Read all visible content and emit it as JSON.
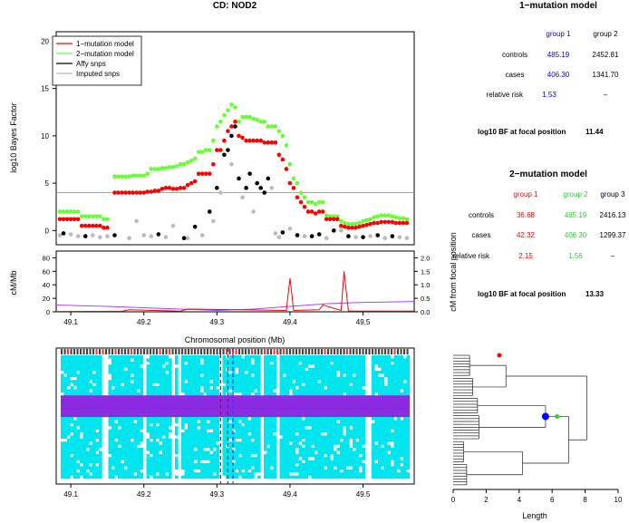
{
  "chart_data": [
    {
      "type": "scatter",
      "title": "CD: NOD2",
      "ylabel": "log10 Bayes Factor",
      "xlim": [
        49.08,
        49.57
      ],
      "ylim": [
        -1.5,
        21
      ],
      "yticks": [
        0,
        5,
        10,
        15,
        20
      ],
      "threshold": 4,
      "legend": {
        "position": "top-left",
        "entries": [
          {
            "label": "1−mutation model",
            "color": "#ff0000"
          },
          {
            "label": "2−mutation model",
            "color": "#66ff33"
          },
          {
            "label": "Affy snps",
            "color": "#000000"
          },
          {
            "label": "Imputed snps",
            "color": "#bbbbbb"
          }
        ]
      },
      "series": [
        {
          "name": "1−mutation model",
          "color": "#ff0000",
          "x": [
            49.085,
            49.09,
            49.095,
            49.1,
            49.105,
            49.11,
            49.115,
            49.12,
            49.125,
            49.13,
            49.135,
            49.14,
            49.145,
            49.15,
            49.16,
            49.165,
            49.17,
            49.175,
            49.18,
            49.185,
            49.19,
            49.195,
            49.2,
            49.205,
            49.21,
            49.215,
            49.22,
            49.225,
            49.23,
            49.235,
            49.24,
            49.245,
            49.25,
            49.255,
            49.26,
            49.265,
            49.27,
            49.275,
            49.28,
            49.285,
            49.29,
            49.295,
            49.3,
            49.305,
            49.31,
            49.315,
            49.32,
            49.325,
            49.33,
            49.335,
            49.34,
            49.345,
            49.35,
            49.355,
            49.36,
            49.365,
            49.37,
            49.375,
            49.38,
            49.385,
            49.39,
            49.395,
            49.4,
            49.405,
            49.41,
            49.415,
            49.42,
            49.425,
            49.43,
            49.435,
            49.44,
            49.445,
            49.45,
            49.455,
            49.46,
            49.465,
            49.47,
            49.475,
            49.48,
            49.485,
            49.49,
            49.495,
            49.5,
            49.505,
            49.51,
            49.515,
            49.52,
            49.525,
            49.53,
            49.535,
            49.54,
            49.545,
            49.55,
            49.555,
            49.56
          ],
          "y": [
            1.2,
            1.2,
            1.2,
            1.2,
            1.2,
            1.2,
            0.5,
            0.5,
            0.5,
            0.5,
            0.5,
            0.5,
            0.3,
            0.3,
            4.0,
            4.0,
            4.0,
            4.0,
            4.0,
            4.0,
            4.0,
            4.0,
            4.0,
            4.1,
            4.1,
            4.2,
            4.2,
            4.4,
            4.5,
            4.5,
            4.4,
            4.4,
            4.5,
            4.5,
            4.8,
            5.0,
            5.2,
            6.0,
            6.0,
            6.0,
            6.0,
            7.0,
            8.5,
            8.5,
            9.5,
            10.5,
            11.0,
            11.5,
            10.0,
            9.8,
            9.5,
            9.5,
            9.5,
            9.5,
            9.5,
            9.3,
            9.3,
            9.3,
            9.3,
            8.0,
            7.5,
            6.5,
            5.0,
            4.5,
            3.5,
            3.0,
            2.5,
            2.0,
            2.0,
            1.8,
            2.0,
            2.0,
            1.2,
            1.2,
            1.2,
            1.2,
            0.5,
            0.4,
            0.3,
            0.3,
            0.3,
            0.4,
            0.5,
            0.6,
            0.7,
            0.8,
            0.8,
            0.9,
            0.9,
            0.9,
            0.9,
            0.8,
            0.8,
            0.8,
            0.8
          ]
        },
        {
          "name": "2−mutation model",
          "color": "#66ff33",
          "x": [
            49.085,
            49.09,
            49.095,
            49.1,
            49.105,
            49.11,
            49.115,
            49.12,
            49.125,
            49.13,
            49.135,
            49.14,
            49.145,
            49.15,
            49.16,
            49.165,
            49.17,
            49.175,
            49.18,
            49.185,
            49.19,
            49.195,
            49.2,
            49.205,
            49.21,
            49.215,
            49.22,
            49.225,
            49.23,
            49.235,
            49.24,
            49.245,
            49.25,
            49.255,
            49.26,
            49.265,
            49.27,
            49.275,
            49.28,
            49.285,
            49.29,
            49.295,
            49.3,
            49.305,
            49.31,
            49.315,
            49.32,
            49.325,
            49.33,
            49.335,
            49.34,
            49.345,
            49.35,
            49.355,
            49.36,
            49.365,
            49.37,
            49.375,
            49.38,
            49.385,
            49.39,
            49.395,
            49.4,
            49.405,
            49.41,
            49.415,
            49.42,
            49.425,
            49.43,
            49.435,
            49.44,
            49.445,
            49.45,
            49.455,
            49.46,
            49.465,
            49.47,
            49.475,
            49.48,
            49.485,
            49.49,
            49.495,
            49.5,
            49.505,
            49.51,
            49.515,
            49.52,
            49.525,
            49.53,
            49.535,
            49.54,
            49.545,
            49.55,
            49.555,
            49.56
          ],
          "y": [
            2.0,
            2.0,
            2.0,
            2.0,
            2.0,
            2.0,
            1.5,
            1.5,
            1.5,
            1.5,
            1.5,
            1.5,
            1.2,
            1.2,
            5.7,
            5.7,
            5.7,
            5.7,
            5.7,
            5.8,
            5.8,
            5.8,
            5.8,
            6.0,
            6.5,
            6.5,
            6.5,
            6.6,
            6.6,
            6.7,
            6.7,
            6.8,
            7.0,
            7.0,
            7.2,
            7.4,
            7.6,
            8.3,
            8.3,
            8.5,
            8.5,
            9.5,
            11.0,
            11.5,
            12.2,
            12.7,
            13.3,
            13.0,
            11.5,
            12.0,
            12.0,
            12.0,
            11.8,
            11.7,
            11.5,
            11.5,
            11.0,
            11.0,
            11.0,
            10.5,
            10.0,
            9.0,
            7.0,
            5.5,
            5.0,
            4.0,
            3.5,
            3.0,
            3.0,
            2.8,
            3.0,
            3.0,
            1.6,
            1.5,
            1.5,
            1.5,
            1.0,
            0.8,
            0.7,
            0.7,
            0.7,
            0.8,
            1.0,
            1.1,
            1.2,
            1.4,
            1.5,
            1.6,
            1.6,
            1.6,
            1.5,
            1.4,
            1.3,
            1.3,
            1.2
          ]
        },
        {
          "name": "Affy snps",
          "color": "#000000",
          "x": [
            49.09,
            49.12,
            49.16,
            49.22,
            49.255,
            49.27,
            49.29,
            49.3,
            49.31,
            49.315,
            49.32,
            49.325,
            49.33,
            49.34,
            49.345,
            49.355,
            49.36,
            49.365,
            49.37,
            49.39,
            49.41,
            49.43,
            49.44,
            49.46,
            49.48,
            49.5,
            49.52,
            49.54
          ],
          "y": [
            -0.3,
            -0.6,
            -0.5,
            -0.4,
            -0.8,
            0.4,
            2.0,
            4.5,
            8.0,
            8.5,
            10.0,
            11.0,
            5.5,
            4.5,
            6.0,
            5.0,
            4.5,
            4.0,
            5.5,
            -0.2,
            -0.5,
            -0.6,
            -0.4,
            0.0,
            -0.6,
            -0.7,
            -0.5,
            -0.6
          ]
        },
        {
          "name": "Imputed snps",
          "color": "#bbbbbb",
          "x": [
            49.085,
            49.1,
            49.11,
            49.13,
            49.14,
            49.15,
            49.18,
            49.19,
            49.2,
            49.21,
            49.23,
            49.24,
            49.26,
            49.28,
            49.295,
            49.305,
            49.32,
            49.335,
            49.35,
            49.375,
            49.38,
            49.385,
            49.4,
            49.42,
            49.45,
            49.47,
            49.49,
            49.51,
            49.53,
            49.55,
            49.56
          ],
          "y": [
            -0.5,
            -0.4,
            -0.6,
            -0.5,
            -0.7,
            -0.6,
            -0.8,
            1.0,
            -0.5,
            -0.6,
            -0.7,
            0.5,
            -0.8,
            -0.5,
            1.0,
            4.0,
            7.0,
            3.5,
            2.0,
            4.5,
            -0.3,
            -0.7,
            0.2,
            -0.6,
            -0.8,
            0.0,
            -0.7,
            -0.6,
            -0.8,
            -0.7,
            -0.8
          ]
        }
      ]
    },
    {
      "type": "line",
      "ylabel_left": "cM/Mb",
      "ylabel_right": "cM from focal position",
      "xlabel": "Chromosomal position (Mb)",
      "xlim": [
        49.08,
        49.57
      ],
      "xticks": [
        49.1,
        49.2,
        49.3,
        49.4,
        49.5
      ],
      "ylim_left": [
        0,
        90
      ],
      "yticks_left": [
        0,
        20,
        40,
        60,
        80
      ],
      "ylim_right": [
        0,
        2.25
      ],
      "yticks_right": [
        0.0,
        0.5,
        1.0,
        1.5,
        2.0
      ],
      "series": [
        {
          "name": "recombination rate",
          "color": "#ff0000",
          "x": [
            49.08,
            49.17,
            49.18,
            49.25,
            49.26,
            49.395,
            49.4,
            49.405,
            49.44,
            49.445,
            49.47,
            49.474,
            49.48,
            49.57
          ],
          "y": [
            0.5,
            0.8,
            3,
            1,
            4,
            2,
            50,
            2,
            3,
            10,
            2,
            60,
            1,
            1
          ]
        },
        {
          "name": "cM from focal position",
          "color": "#aa44ff",
          "x": [
            49.08,
            49.15,
            49.2,
            49.25,
            49.3,
            49.35,
            49.4,
            49.45,
            49.5,
            49.57
          ],
          "y": [
            0.25,
            0.2,
            0.15,
            0.1,
            0.05,
            0.1,
            0.2,
            0.3,
            0.35,
            0.38
          ]
        }
      ]
    },
    {
      "type": "heatmap",
      "xlim": [
        49.08,
        49.57
      ],
      "xticks": [
        49.1,
        49.2,
        49.3,
        49.4,
        49.5
      ],
      "focal_lines": [
        49.305,
        49.315,
        49.322
      ],
      "colors": {
        "major": "#00e5ee",
        "minor": "#ffffff",
        "haplotype": "#8a2be2"
      }
    },
    {
      "type": "line",
      "subtype": "dendrogram",
      "xlabel": "Length",
      "xlim": [
        0,
        10
      ],
      "xticks": [
        0,
        2,
        4,
        6,
        8,
        10
      ],
      "markers": [
        {
          "x": 2.8,
          "color": "#ff0000"
        },
        {
          "x": 5.6,
          "color": "#0000ff"
        },
        {
          "x": 6.3,
          "color": "#33cc33"
        }
      ]
    }
  ],
  "tables": {
    "one_mutation": {
      "title": "1−mutation model",
      "headers": [
        "group 1",
        "group 2"
      ],
      "header_colors": [
        "#0000ff",
        "#000000"
      ],
      "rows": [
        {
          "label": "controls",
          "values": [
            "485.19",
            "2452.81"
          ],
          "colors": [
            "#0000ff",
            "#000000"
          ]
        },
        {
          "label": "cases",
          "values": [
            "406.30",
            "1341.70"
          ],
          "colors": [
            "#0000ff",
            "#000000"
          ]
        },
        {
          "label": "relative risk",
          "values": [
            "1.53",
            "–"
          ],
          "colors": [
            "#0000ff",
            "#000000"
          ]
        }
      ],
      "bf_label": "log10 BF at focal position",
      "bf_value": "11.44"
    },
    "two_mutation": {
      "title": "2−mutation model",
      "headers": [
        "group 1",
        "group 2",
        "group 3"
      ],
      "header_colors": [
        "#ff0000",
        "#33cc33",
        "#000000"
      ],
      "rows": [
        {
          "label": "controls",
          "values": [
            "36.68",
            "485.19",
            "2416.13"
          ],
          "colors": [
            "#ff0000",
            "#33cc33",
            "#000000"
          ]
        },
        {
          "label": "cases",
          "values": [
            "42.32",
            "406.30",
            "1299.37"
          ],
          "colors": [
            "#ff0000",
            "#33cc33",
            "#000000"
          ]
        },
        {
          "label": "relative risk",
          "values": [
            "2.15",
            "1.56",
            "–"
          ],
          "colors": [
            "#ff0000",
            "#33cc33",
            "#000000"
          ]
        }
      ],
      "bf_label": "log10 BF at focal position",
      "bf_value": "13.33"
    }
  }
}
